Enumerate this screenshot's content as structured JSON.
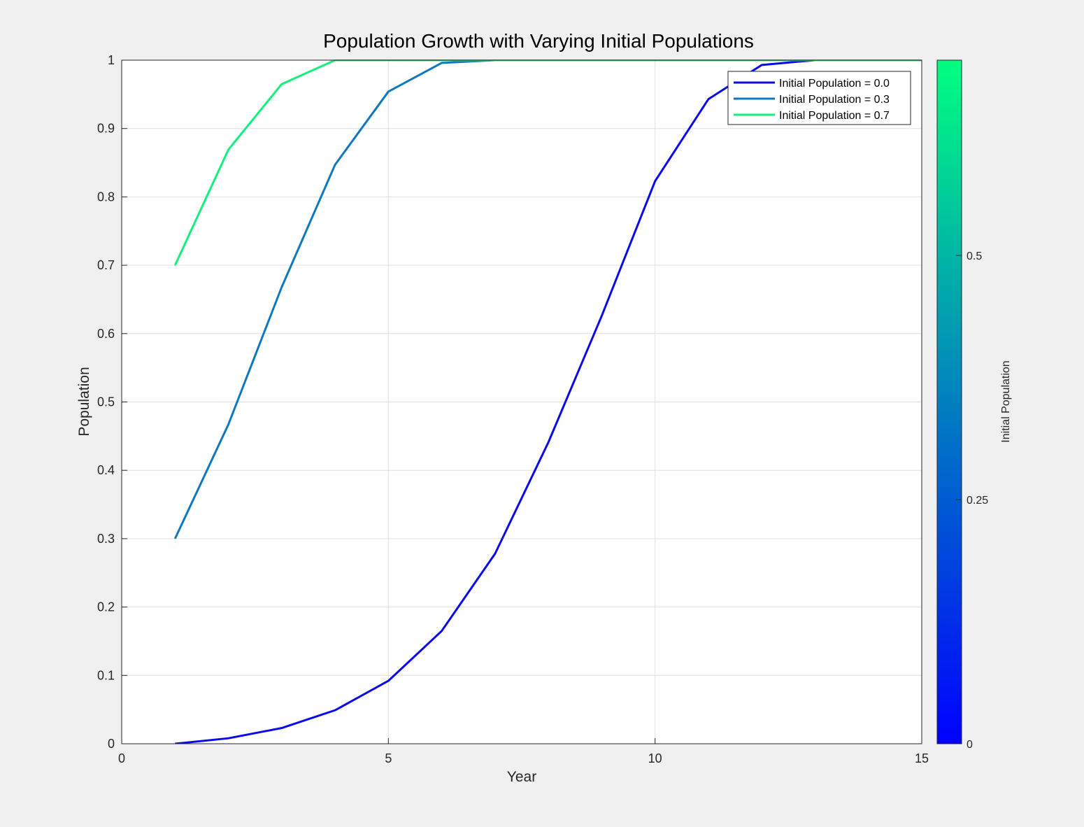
{
  "chart_data": {
    "type": "line",
    "title": "Population Growth with Varying Initial Populations",
    "xlabel": "Year",
    "ylabel": "Population",
    "xlim": [
      0,
      15
    ],
    "ylim": [
      0,
      1
    ],
    "xticks": [
      0,
      5,
      10,
      15
    ],
    "yticks": [
      0,
      0.1,
      0.2,
      0.3,
      0.4,
      0.5,
      0.6,
      0.7,
      0.8,
      0.9,
      1
    ],
    "x_tick_labels": [
      "0",
      "5",
      "10",
      "15"
    ],
    "y_tick_labels": [
      "0",
      "0.1",
      "0.2",
      "0.3",
      "0.4",
      "0.5",
      "0.6",
      "0.7",
      "0.8",
      "0.9",
      "1"
    ],
    "grid": true,
    "legend_position": "top-right",
    "x": [
      1,
      2,
      3,
      4,
      5,
      6,
      7,
      8,
      9,
      10,
      11,
      12,
      13,
      14,
      15
    ],
    "series": [
      {
        "name": "Initial Population = 0.0",
        "color": "#0a0aeb",
        "values": [
          0.0,
          0.008,
          0.023,
          0.049,
          0.092,
          0.165,
          0.278,
          0.441,
          0.626,
          0.823,
          0.943,
          0.993,
          1.0,
          1.0,
          1.0
        ]
      },
      {
        "name": "Initial Population = 0.3",
        "color": "#0f78bc",
        "values": [
          0.3,
          0.467,
          0.668,
          0.847,
          0.954,
          0.996,
          1.0,
          1.0,
          1.0,
          1.0,
          1.0,
          1.0,
          1.0,
          1.0,
          1.0
        ]
      },
      {
        "name": "Initial Population = 0.7",
        "color": "#14f07d",
        "values": [
          0.7,
          0.869,
          0.965,
          1.0,
          1.0,
          1.0,
          1.0,
          1.0,
          1.0,
          1.0,
          1.0,
          1.0,
          1.0,
          1.0,
          1.0
        ]
      }
    ],
    "colorbar": {
      "label": "Initial Population",
      "range": [
        0,
        0.7
      ],
      "ticks": [
        0,
        0.25,
        0.5
      ],
      "tick_labels": [
        "0",
        "0.25",
        "0.5"
      ],
      "colormap_start": "#0000ff",
      "colormap_end": "#00ff80"
    }
  }
}
